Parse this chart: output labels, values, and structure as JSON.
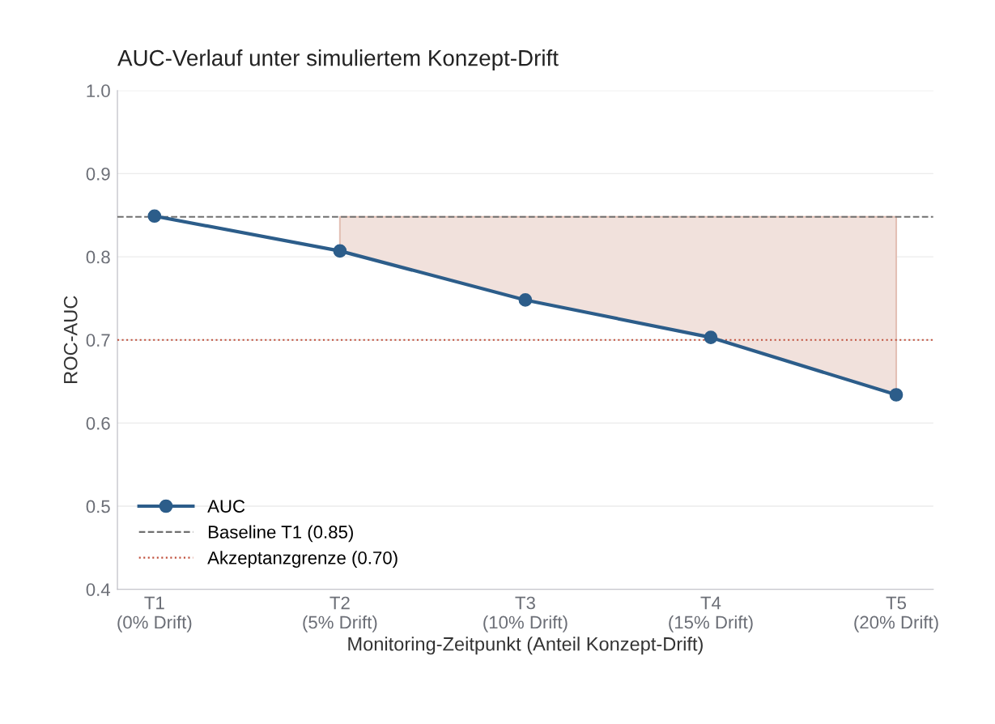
{
  "chart_data": {
    "type": "line",
    "title": "AUC-Verlauf unter simuliertem Konzept-Drift",
    "xlabel": "Monitoring-Zeitpunkt (Anteil Konzept-Drift)",
    "ylabel": "ROC-AUC",
    "categories": [
      "T1\n(0% Drift)",
      "T2\n(5% Drift)",
      "T3\n(10% Drift)",
      "T4\n(15% Drift)",
      "T5\n(20% Drift)"
    ],
    "series": [
      {
        "name": "AUC",
        "color": "#2c5d8a",
        "values": [
          0.849,
          0.807,
          0.748,
          0.703,
          0.634
        ],
        "lower": [
          null,
          0.807,
          0.748,
          0.703,
          0.634
        ],
        "upper": [
          null,
          0.848,
          0.848,
          0.848,
          0.848
        ]
      }
    ],
    "ref_lines": [
      {
        "axis": "y",
        "value": 0.848,
        "label": "Baseline T1 (0.85)",
        "color": "#707070",
        "line_style": "dashed"
      },
      {
        "axis": "y",
        "value": 0.7,
        "label": "Akzeptanzgrenze (0.70)",
        "color": "#c0503c",
        "line_style": "dotted"
      }
    ],
    "ylim": [
      0.4,
      1.0
    ],
    "yticks": [
      0.4,
      0.5,
      0.6,
      0.7,
      0.8,
      0.9,
      {
        "value": 1.0,
        "label": "1.0"
      }
    ],
    "grid": "y",
    "legend": "bottom left",
    "marker": "circle",
    "line_style": "solid"
  }
}
